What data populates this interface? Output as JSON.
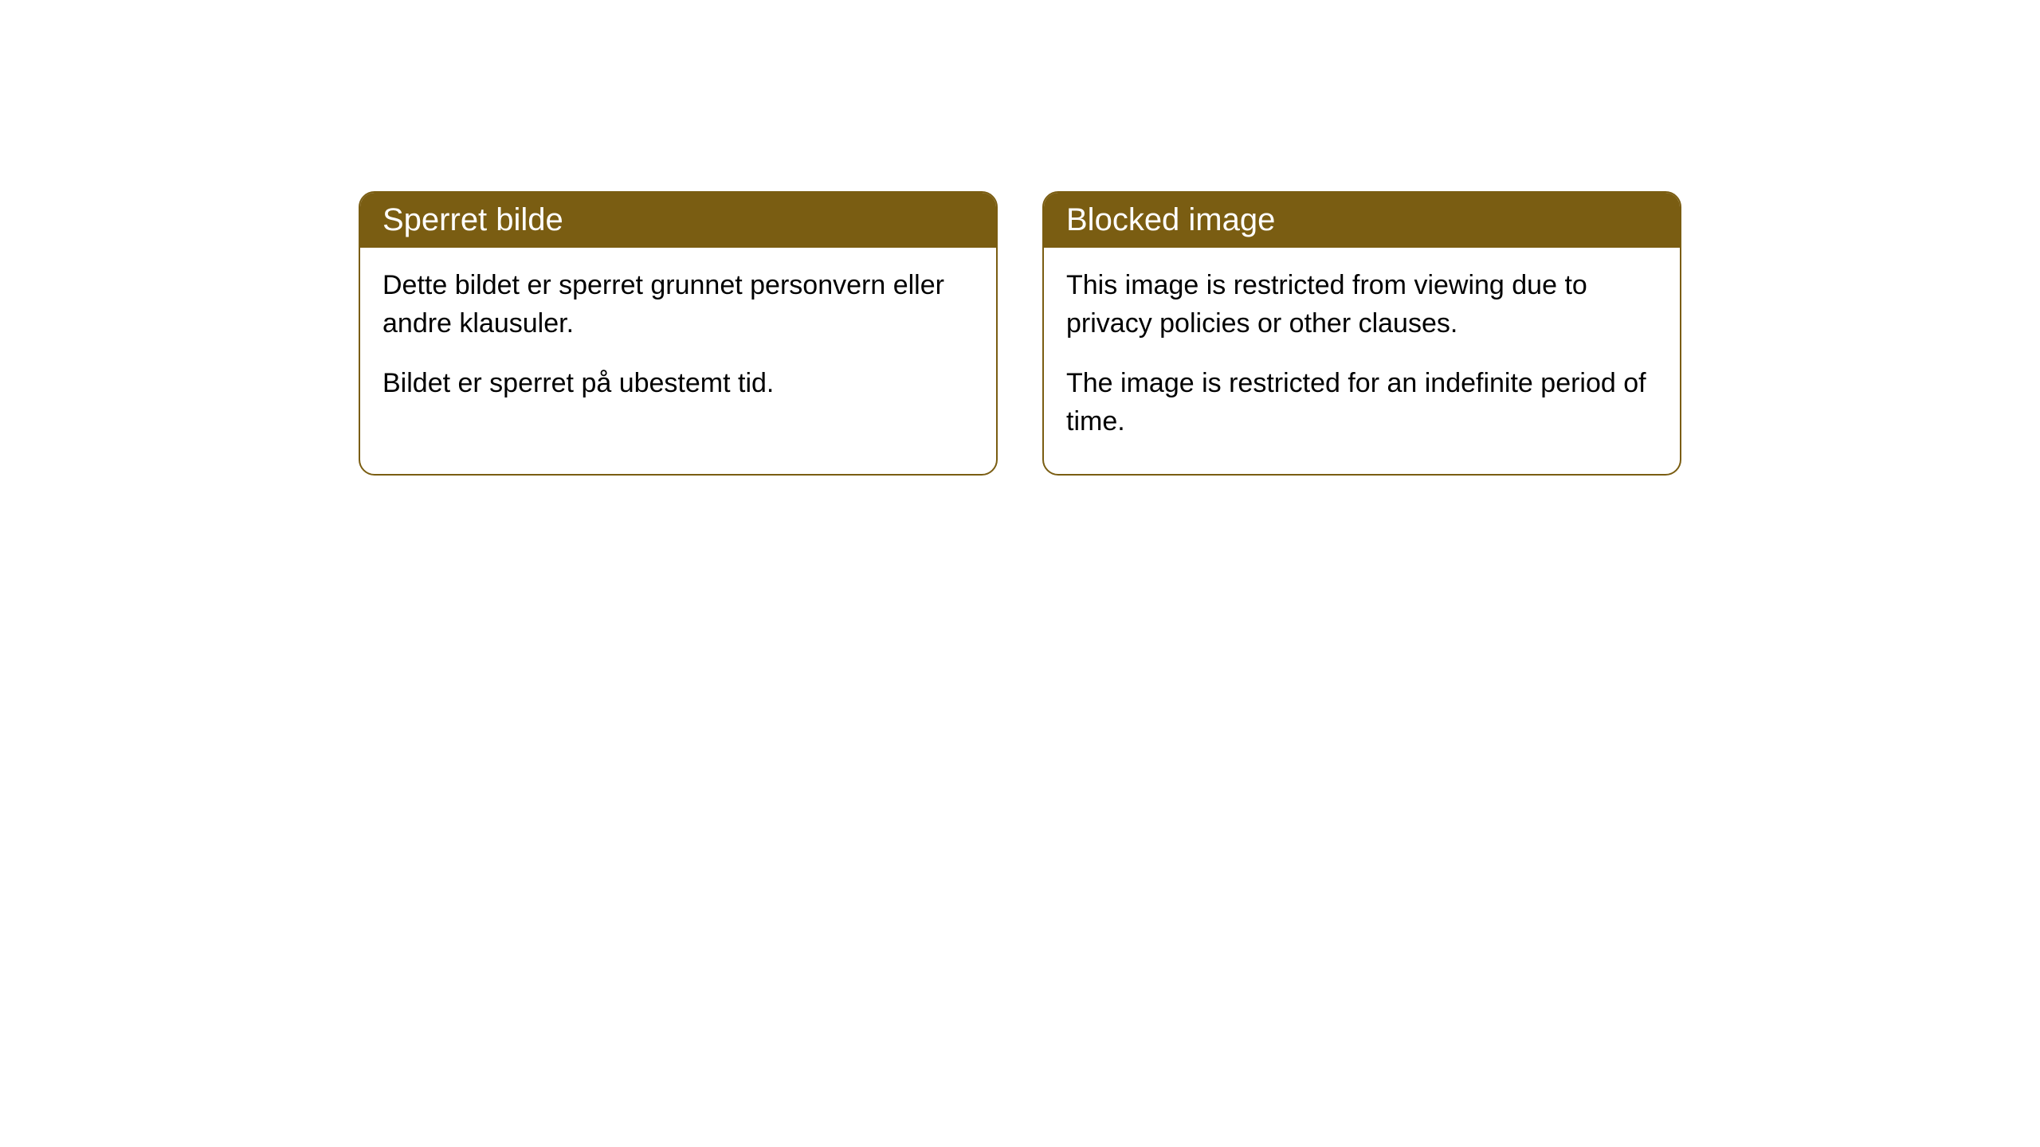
{
  "cards": [
    {
      "title": "Sperret bilde",
      "paragraph1": "Dette bildet er sperret grunnet personvern eller andre klausuler.",
      "paragraph2": "Bildet er sperret på ubestemt tid."
    },
    {
      "title": "Blocked image",
      "paragraph1": "This image is restricted from viewing due to privacy policies or other clauses.",
      "paragraph2": "The image is restricted for an indefinite period of time."
    }
  ],
  "styling": {
    "header_bg_color": "#7a5d12",
    "header_text_color": "#ffffff",
    "border_color": "#7a5d12",
    "body_bg_color": "#ffffff",
    "body_text_color": "#000000",
    "border_radius": 20,
    "header_fontsize": 40,
    "body_fontsize": 34
  }
}
